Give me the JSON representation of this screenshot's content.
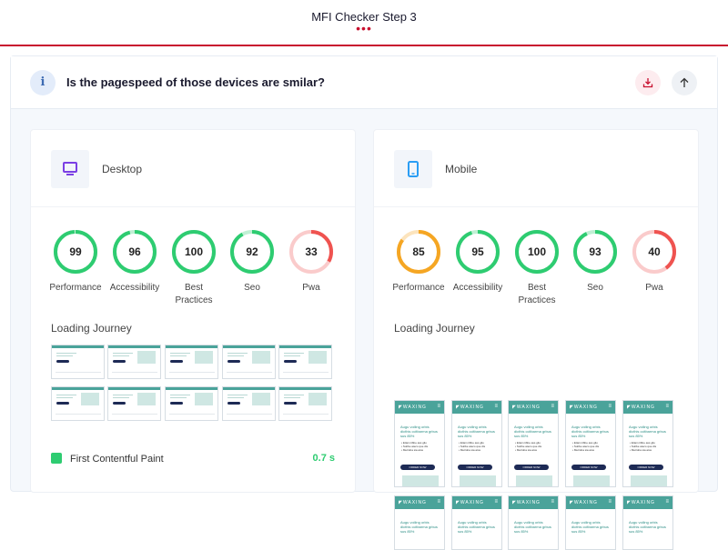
{
  "header": {
    "title": "MFI Checker Step 3",
    "dots": "•••"
  },
  "question": {
    "info_icon": "i",
    "text": "Is the pagespeed of those devices are smilar?"
  },
  "desktop": {
    "name": "Desktop",
    "scores": [
      {
        "label": "Performance",
        "value": 99,
        "color": "#2ecc71"
      },
      {
        "label": "Accessibility",
        "value": 96,
        "color": "#2ecc71"
      },
      {
        "label": "Best Practices",
        "value": 100,
        "color": "#2ecc71"
      },
      {
        "label": "Seo",
        "value": 92,
        "color": "#2ecc71"
      },
      {
        "label": "Pwa",
        "value": 33,
        "color": "#ef5350"
      }
    ],
    "journey_title": "Loading Journey",
    "metric": {
      "label": "First Contentful Paint",
      "value": "0.7 s"
    }
  },
  "mobile": {
    "name": "Mobile",
    "scores": [
      {
        "label": "Performance",
        "value": 85,
        "color": "#f5a623"
      },
      {
        "label": "Accessibility",
        "value": 95,
        "color": "#2ecc71"
      },
      {
        "label": "Best Practices",
        "value": 100,
        "color": "#2ecc71"
      },
      {
        "label": "Seo",
        "value": 93,
        "color": "#2ecc71"
      },
      {
        "label": "Pwa",
        "value": 40,
        "color": "#ef5350"
      }
    ],
    "journey_title": "Loading Journey"
  },
  "icons": {
    "info": "info-icon",
    "download": "download-icon",
    "up": "arrow-up-icon",
    "desktop": "desktop-monitor-icon",
    "mobile": "mobile-phone-icon"
  },
  "colors": {
    "accent": "#c8102e",
    "good": "#2ecc71",
    "average": "#f5a623",
    "poor": "#ef5350"
  }
}
